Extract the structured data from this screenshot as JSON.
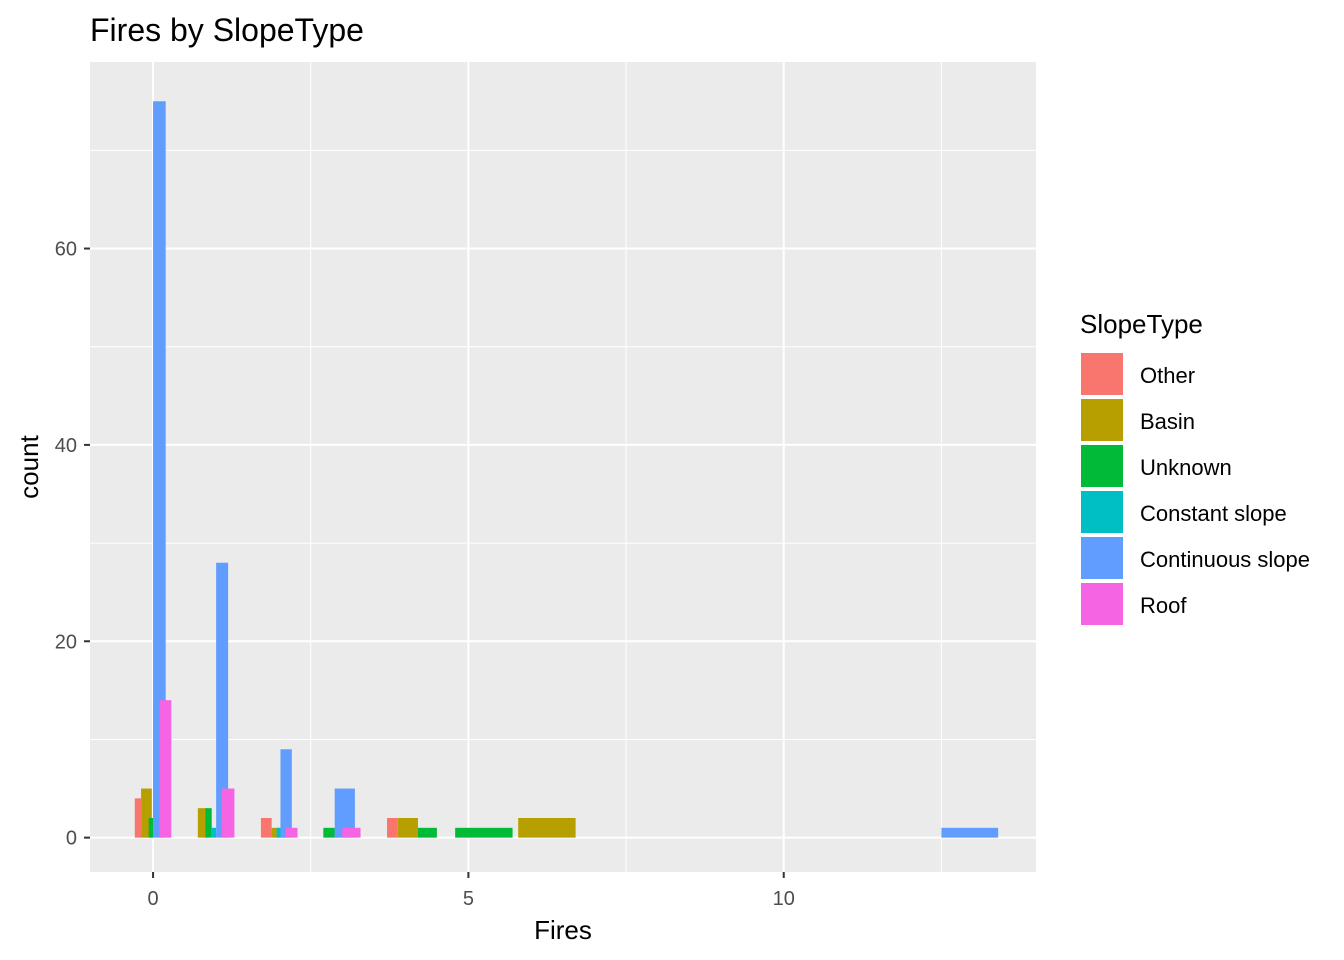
{
  "chart_data": {
    "type": "bar",
    "title": "Fires by SlopeType",
    "xlabel": "Fires",
    "ylabel": "count",
    "xlim": [
      -1,
      14
    ],
    "ylim": [
      -3.5,
      79
    ],
    "x_ticks": [
      0,
      5,
      10
    ],
    "x_tick_labels": [
      "0",
      "5",
      "10"
    ],
    "y_ticks": [
      0,
      20,
      40,
      60
    ],
    "y_tick_labels": [
      "0",
      "20",
      "40",
      "60"
    ],
    "grid": true,
    "legend": {
      "title": "SlopeType",
      "position": "right"
    },
    "series": [
      {
        "name": "Other",
        "color": "#F8766D",
        "bars": [
          {
            "x0": -0.29,
            "x1": -0.19,
            "count": 4
          },
          {
            "x0": 1.71,
            "x1": 1.88,
            "count": 2
          },
          {
            "x0": 3.71,
            "x1": 3.88,
            "count": 2
          }
        ]
      },
      {
        "name": "Basin",
        "color": "#B79F00",
        "bars": [
          {
            "x0": -0.19,
            "x1": -0.02,
            "count": 5
          },
          {
            "x0": 0.71,
            "x1": 0.86,
            "count": 3
          },
          {
            "x0": 1.88,
            "x1": 1.96,
            "count": 1
          },
          {
            "x0": 3.88,
            "x1": 4.2,
            "count": 2
          },
          {
            "x0": 5.79,
            "x1": 6.7,
            "count": 2
          }
        ]
      },
      {
        "name": "Unknown",
        "color": "#00BA38",
        "bars": [
          {
            "x0": -0.07,
            "x1": 0.0,
            "count": 2
          },
          {
            "x0": 0.83,
            "x1": 0.93,
            "count": 3
          },
          {
            "x0": 1.96,
            "x1": 2.0,
            "count": 1
          },
          {
            "x0": 2.7,
            "x1": 2.88,
            "count": 1
          },
          {
            "x0": 4.2,
            "x1": 4.5,
            "count": 1
          },
          {
            "x0": 4.79,
            "x1": 5.7,
            "count": 1
          }
        ]
      },
      {
        "name": "Constant slope",
        "color": "#00BFC4",
        "bars": [
          {
            "x0": 0.93,
            "x1": 1.0,
            "count": 1
          },
          {
            "x0": 1.96,
            "x1": 2.08,
            "count": 1
          },
          {
            "x0": 2.88,
            "x1": 2.94,
            "count": 1
          }
        ]
      },
      {
        "name": "Continuous slope",
        "color": "#619CFF",
        "bars": [
          {
            "x0": 0.0,
            "x1": 0.2,
            "count": 75
          },
          {
            "x0": 1.0,
            "x1": 1.19,
            "count": 28
          },
          {
            "x0": 2.02,
            "x1": 2.2,
            "count": 9
          },
          {
            "x0": 2.88,
            "x1": 3.2,
            "count": 5
          },
          {
            "x0": 12.5,
            "x1": 13.4,
            "count": 1
          }
        ]
      },
      {
        "name": "Roof",
        "color": "#F564E3",
        "bars": [
          {
            "x0": 0.1,
            "x1": 0.29,
            "count": 14
          },
          {
            "x0": 1.09,
            "x1": 1.29,
            "count": 5
          },
          {
            "x0": 2.1,
            "x1": 2.29,
            "count": 1
          },
          {
            "x0": 3.0,
            "x1": 3.29,
            "count": 1
          }
        ]
      }
    ]
  }
}
